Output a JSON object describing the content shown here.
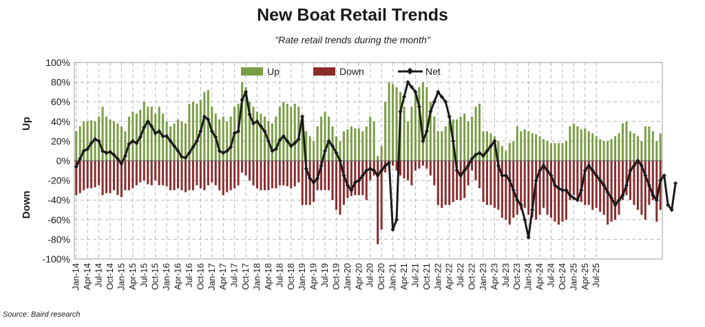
{
  "chart_data": {
    "type": "bar",
    "title": "New Boat Retail Trends",
    "subtitle": "\"Rate retail trends during the month\"",
    "source": "Source: Baird research",
    "side_label_up": "Up",
    "side_label_down": "Down",
    "ylim": [
      -100,
      100
    ],
    "y_ticks": [
      100,
      80,
      60,
      40,
      20,
      0,
      -20,
      -40,
      -60,
      -80,
      -100
    ],
    "y_tick_labels": [
      "100%",
      "80%",
      "60%",
      "40%",
      "20%",
      "0%",
      "-20%",
      "-40%",
      "-60%",
      "-80%",
      "-100%"
    ],
    "x_tick_labels": [
      "Jan-14",
      "Apr-14",
      "Jul-14",
      "Oct-14",
      "Jan-15",
      "Apr-15",
      "Jul-15",
      "Oct-15",
      "Jan-16",
      "Apr-16",
      "Jul-16",
      "Oct-16",
      "Jan-17",
      "Apr-17",
      "Jul-17",
      "Oct-17",
      "Jan-18",
      "Apr-18",
      "Jul-18",
      "Oct-18",
      "Jan-19",
      "Apr-19",
      "Jul-19",
      "Oct-19",
      "Jan-20",
      "Apr-20",
      "Jul-20",
      "Oct-20",
      "Jan-21",
      "Apr-21",
      "Jul-21",
      "Oct-21",
      "Jan-22",
      "Apr-22",
      "Jul-22",
      "Oct-22",
      "Jan-23",
      "Apr-23",
      "Jul-23",
      "Oct-23",
      "Jan-24",
      "Apr-24",
      "Jul-24",
      "Oct-24",
      "Jan-25",
      "Apr-25",
      "Jul-25"
    ],
    "start_month": "Jan-14",
    "grid": true,
    "legend": "top",
    "colors": {
      "up": "#7a9e45",
      "down": "#8b2b2b",
      "net": "#1a1a1a"
    },
    "series": [
      {
        "name": "Up",
        "kind": "bar",
        "values": [
          30,
          35,
          40,
          40,
          41,
          40,
          45,
          55,
          45,
          42,
          40,
          38,
          35,
          30,
          45,
          50,
          48,
          52,
          60,
          55,
          55,
          48,
          55,
          48,
          40,
          35,
          38,
          42,
          40,
          38,
          58,
          60,
          58,
          62,
          70,
          72,
          55,
          48,
          42,
          45,
          40,
          45,
          55,
          58,
          80,
          75,
          60,
          55,
          50,
          48,
          45,
          40,
          38,
          45,
          55,
          60,
          58,
          55,
          58,
          55,
          40,
          30,
          25,
          20,
          35,
          45,
          50,
          45,
          35,
          25,
          20,
          30,
          32,
          35,
          33,
          33,
          30,
          35,
          45,
          40,
          5,
          15,
          60,
          80,
          78,
          75,
          70,
          55,
          40,
          55,
          70,
          75,
          80,
          75,
          60,
          45,
          30,
          30,
          35,
          40,
          42,
          42,
          45,
          48,
          40,
          45,
          55,
          58,
          30,
          30,
          28,
          25,
          20,
          15,
          10,
          18,
          20,
          35,
          30,
          32,
          30,
          28,
          27,
          25,
          22,
          20,
          18,
          18,
          18,
          18,
          20,
          35,
          38,
          35,
          32,
          33,
          30,
          28,
          25,
          22,
          20,
          20,
          22,
          25,
          28,
          38,
          40,
          30,
          28,
          25,
          20,
          35,
          35,
          30,
          20,
          28
        ]
      },
      {
        "name": "Down",
        "kind": "bar",
        "values": [
          -35,
          -33,
          -30,
          -28,
          -28,
          -27,
          -25,
          -35,
          -33,
          -33,
          -30,
          -35,
          -37,
          -30,
          -30,
          -28,
          -25,
          -22,
          -20,
          -24,
          -25,
          -20,
          -25,
          -25,
          -26,
          -30,
          -30,
          -28,
          -30,
          -32,
          -30,
          -30,
          -25,
          -28,
          -30,
          -25,
          -22,
          -25,
          -30,
          -35,
          -32,
          -30,
          -28,
          -25,
          -12,
          -15,
          -20,
          -25,
          -28,
          -30,
          -30,
          -30,
          -28,
          -28,
          -25,
          -25,
          -26,
          -28,
          -26,
          -22,
          -45,
          -45,
          -45,
          -42,
          -30,
          -30,
          -30,
          -30,
          -40,
          -50,
          -55,
          -45,
          -38,
          -36,
          -35,
          -35,
          -35,
          -40,
          -20,
          -15,
          -85,
          -70,
          -12,
          -5,
          -5,
          -10,
          -15,
          -18,
          -20,
          -25,
          -10,
          -8,
          -5,
          -8,
          -15,
          -25,
          -45,
          -48,
          -45,
          -45,
          -42,
          -40,
          -40,
          -38,
          -25,
          -10,
          -20,
          -28,
          -42,
          -45,
          -45,
          -48,
          -50,
          -58,
          -60,
          -65,
          -58,
          -55,
          -50,
          -48,
          -55,
          -58,
          -60,
          -55,
          -48,
          -55,
          -58,
          -62,
          -65,
          -62,
          -60,
          -40,
          -35,
          -40,
          -42,
          -45,
          -45,
          -50,
          -48,
          -52,
          -55,
          -65,
          -62,
          -60,
          -55,
          -40,
          -35,
          -40,
          -45,
          -50,
          -55,
          -60,
          -45,
          -40,
          -62,
          -50
        ]
      },
      {
        "name": "Net",
        "kind": "line",
        "values": [
          -6,
          2,
          10,
          12,
          18,
          22,
          20,
          10,
          8,
          9,
          6,
          2,
          -3,
          5,
          17,
          20,
          18,
          24,
          34,
          40,
          35,
          28,
          30,
          25,
          25,
          20,
          15,
          10,
          4,
          3,
          8,
          14,
          20,
          30,
          45,
          42,
          30,
          24,
          10,
          8,
          10,
          14,
          28,
          30,
          62,
          70,
          47,
          38,
          40,
          35,
          30,
          20,
          10,
          12,
          21,
          25,
          20,
          15,
          18,
          22,
          45,
          -8,
          -18,
          -22,
          -18,
          -5,
          10,
          20,
          15,
          8,
          0,
          -15,
          -25,
          -30,
          -22,
          -20,
          -15,
          -10,
          -8,
          -10,
          -15,
          -10,
          -5,
          -2,
          -70,
          -60,
          50,
          65,
          80,
          75,
          70,
          55,
          20,
          30,
          50,
          60,
          70,
          65,
          60,
          45,
          20,
          -10,
          -15,
          -10,
          -5,
          2,
          6,
          8,
          5,
          10,
          15,
          20,
          -5,
          -15,
          -15,
          -20,
          -30,
          -40,
          -45,
          -60,
          -78,
          -50,
          -20,
          -10,
          -5,
          -10,
          -15,
          -25,
          -28,
          -30,
          -30,
          -35,
          -38,
          -40,
          -30,
          -10,
          -5,
          -10,
          -15,
          -20,
          -25,
          -32,
          -38,
          -45,
          -40,
          -35,
          -25,
          -10,
          -5,
          0,
          -5,
          -15,
          -25,
          -35,
          -40,
          -20,
          -15,
          -45,
          -50,
          -23
        ]
      }
    ]
  }
}
